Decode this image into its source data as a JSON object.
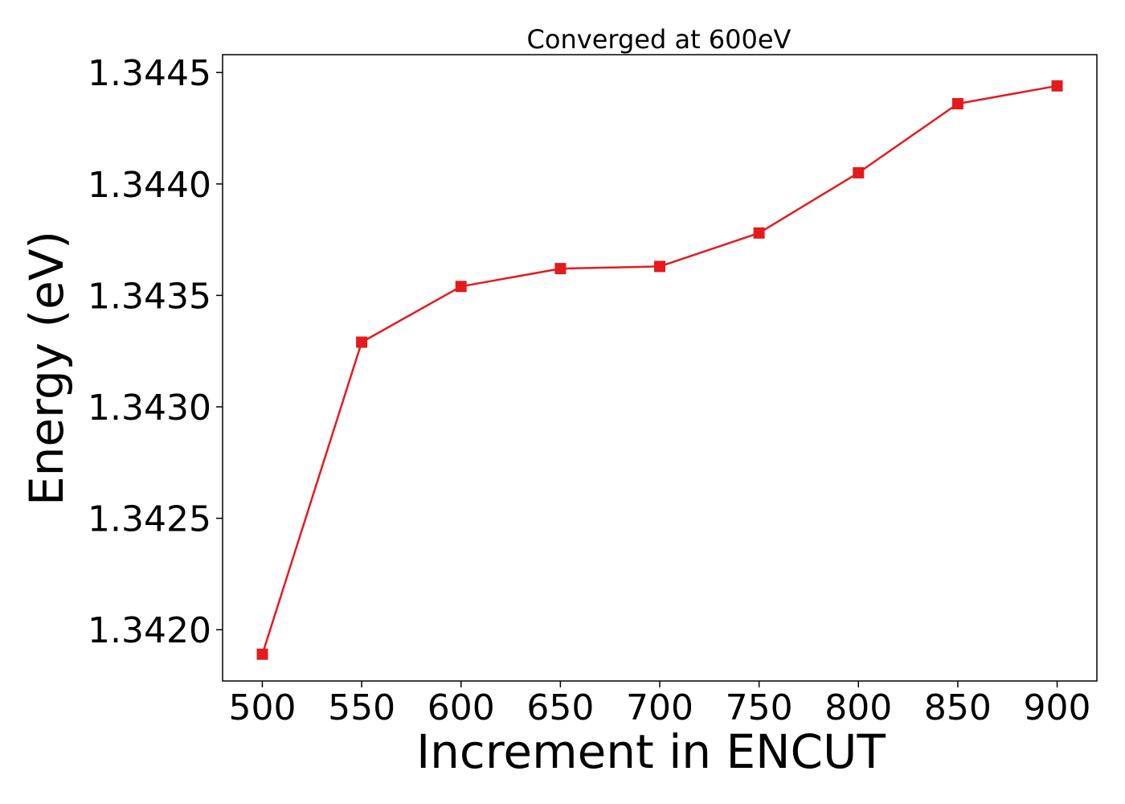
{
  "chart_data": {
    "type": "line",
    "title": "Converged at 600eV",
    "xlabel": "Increment in ENCUT",
    "ylabel": "Energy (eV)",
    "x": [
      500,
      550,
      600,
      650,
      700,
      750,
      800,
      850,
      900
    ],
    "xticks": [
      "500",
      "550",
      "600",
      "650",
      "700",
      "750",
      "800",
      "850",
      "900"
    ],
    "yticks": [
      "1.3420",
      "1.3425",
      "1.3430",
      "1.3435",
      "1.3440",
      "1.3445"
    ],
    "ytick_values": [
      1.342,
      1.3425,
      1.343,
      1.3435,
      1.344,
      1.3445
    ],
    "xlim": [
      480,
      920
    ],
    "ylim": [
      1.34177,
      1.34458
    ],
    "grid": false,
    "series": [
      {
        "color": "#e41a1c",
        "marker": "square",
        "values": [
          1.34189,
          1.34329,
          1.34354,
          1.34362,
          1.34363,
          1.34378,
          1.34405,
          1.34436,
          1.34444
        ]
      }
    ]
  }
}
